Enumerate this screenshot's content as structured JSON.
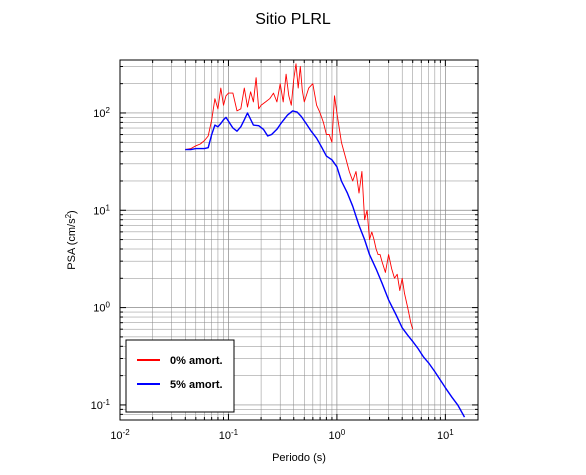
{
  "chart_data": {
    "type": "line",
    "title": "Sitio PLRL",
    "xlabel": "Periodo (s)",
    "ylabel_base": "PSA (cm/s",
    "ylabel_sup": "2",
    "ylabel_close": ")",
    "x_scale": "log",
    "y_scale": "log",
    "xlim": [
      0.01,
      20
    ],
    "ylim": [
      0.07,
      350
    ],
    "grid": true,
    "legend_position": "bottom-left",
    "x_ticks": [
      {
        "base": "10",
        "exp": "-2",
        "value": 0.01
      },
      {
        "base": "10",
        "exp": "-1",
        "value": 0.1
      },
      {
        "base": "10",
        "exp": "0",
        "value": 1
      },
      {
        "base": "10",
        "exp": "1",
        "value": 10
      }
    ],
    "y_ticks": [
      {
        "base": "10",
        "exp": "-1",
        "value": 0.1
      },
      {
        "base": "10",
        "exp": "0",
        "value": 1
      },
      {
        "base": "10",
        "exp": "1",
        "value": 10
      },
      {
        "base": "10",
        "exp": "2",
        "value": 100
      }
    ],
    "series": [
      {
        "name": "0% amort.",
        "color": "#ff0000",
        "x": [
          0.04,
          0.045,
          0.05,
          0.055,
          0.06,
          0.065,
          0.07,
          0.075,
          0.08,
          0.085,
          0.09,
          0.095,
          0.1,
          0.11,
          0.12,
          0.13,
          0.14,
          0.15,
          0.16,
          0.17,
          0.18,
          0.19,
          0.2,
          0.22,
          0.24,
          0.26,
          0.28,
          0.3,
          0.32,
          0.34,
          0.36,
          0.38,
          0.4,
          0.42,
          0.44,
          0.46,
          0.48,
          0.5,
          0.55,
          0.6,
          0.65,
          0.7,
          0.75,
          0.8,
          0.85,
          0.9,
          0.95,
          1.0,
          1.1,
          1.2,
          1.3,
          1.4,
          1.5,
          1.6,
          1.7,
          1.8,
          1.9,
          2.0,
          2.1,
          2.2,
          2.3,
          2.4,
          2.5,
          2.6,
          2.8,
          3.0,
          3.2,
          3.4,
          3.6,
          3.8,
          4.0,
          4.2,
          4.5,
          4.8,
          5.0
        ],
        "y": [
          42,
          43,
          46,
          48,
          52,
          58,
          85,
          140,
          110,
          180,
          120,
          150,
          160,
          160,
          105,
          110,
          180,
          115,
          165,
          130,
          230,
          110,
          120,
          130,
          140,
          160,
          130,
          200,
          130,
          250,
          150,
          120,
          220,
          320,
          180,
          300,
          170,
          130,
          180,
          200,
          120,
          100,
          80,
          60,
          60,
          50,
          150,
          100,
          50,
          35,
          25,
          20,
          25,
          15,
          25,
          8,
          10,
          5,
          6,
          5,
          4,
          3.5,
          3.5,
          3,
          2.3,
          3.5,
          2.5,
          2,
          2.2,
          1.5,
          2,
          1.4,
          1,
          0.7,
          0.6
        ]
      },
      {
        "name": "5% amort.",
        "color": "#0000ff",
        "x": [
          0.04,
          0.045,
          0.05,
          0.055,
          0.06,
          0.065,
          0.07,
          0.075,
          0.08,
          0.085,
          0.09,
          0.095,
          0.1,
          0.11,
          0.12,
          0.13,
          0.14,
          0.15,
          0.17,
          0.19,
          0.21,
          0.23,
          0.25,
          0.28,
          0.31,
          0.35,
          0.39,
          0.43,
          0.47,
          0.52,
          0.58,
          0.65,
          0.72,
          0.8,
          0.9,
          1.0,
          1.1,
          1.25,
          1.4,
          1.6,
          1.8,
          2.0,
          2.3,
          2.6,
          3.0,
          3.5,
          4.0,
          4.5,
          5.0,
          5.6,
          6.3,
          7.0,
          8.0,
          9.0,
          10.0,
          11.5,
          13.0,
          15.0
        ],
        "y": [
          42,
          42,
          43,
          43,
          43,
          44,
          60,
          75,
          72,
          78,
          85,
          90,
          82,
          70,
          65,
          72,
          85,
          100,
          75,
          74,
          68,
          58,
          60,
          68,
          80,
          95,
          105,
          102,
          92,
          78,
          65,
          55,
          45,
          36,
          33,
          28,
          20,
          15,
          11,
          7,
          5,
          3.5,
          2.5,
          1.8,
          1.2,
          0.85,
          0.62,
          0.52,
          0.45,
          0.38,
          0.31,
          0.27,
          0.22,
          0.18,
          0.15,
          0.12,
          0.1,
          0.075
        ]
      }
    ]
  }
}
